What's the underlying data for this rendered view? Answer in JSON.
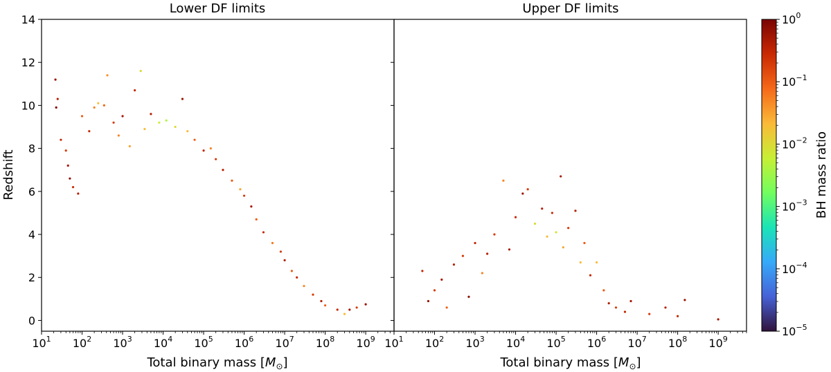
{
  "chart_data": [
    {
      "type": "scatter",
      "title": "Lower DF limits",
      "xlabel": "Total binary mass [M⊙]",
      "ylabel": "Redshift",
      "xscale": "log",
      "xlim": [
        10,
        5000000000
      ],
      "ylim": [
        -0.5,
        14
      ],
      "x_ticks": [
        10,
        100,
        1000,
        10000,
        100000,
        1000000,
        10000000,
        100000000,
        1000000000
      ],
      "x_tick_labels": [
        [
          "10",
          "1"
        ],
        [
          "10",
          "2"
        ],
        [
          "10",
          "3"
        ],
        [
          "10",
          "4"
        ],
        [
          "10",
          "5"
        ],
        [
          "10",
          "6"
        ],
        [
          "10",
          "7"
        ],
        [
          "10",
          "8"
        ],
        [
          "10",
          "9"
        ]
      ],
      "y_ticks": [
        0,
        2,
        4,
        6,
        8,
        10,
        12,
        14
      ],
      "y_tick_labels": [
        "0",
        "2",
        "4",
        "6",
        "8",
        "10",
        "12",
        "14"
      ],
      "color_variable": "BH mass ratio",
      "series": [
        {
          "points": [
            [
              22,
              11.2,
              0.6
            ],
            [
              25,
              10.3,
              0.4
            ],
            [
              23,
              9.9,
              0.9
            ],
            [
              30,
              8.4,
              0.3
            ],
            [
              40,
              7.9,
              0.2
            ],
            [
              45,
              7.2,
              0.5
            ],
            [
              50,
              6.6,
              0.7
            ],
            [
              60,
              6.2,
              0.25
            ],
            [
              80,
              5.9,
              0.4
            ],
            [
              100,
              9.5,
              0.1
            ],
            [
              150,
              8.8,
              0.3
            ],
            [
              200,
              9.9,
              0.05
            ],
            [
              250,
              10.1,
              0.02
            ],
            [
              350,
              10.0,
              0.08
            ],
            [
              420,
              11.4,
              0.04
            ],
            [
              600,
              9.2,
              0.2
            ],
            [
              800,
              8.6,
              0.05
            ],
            [
              1000,
              9.5,
              0.5
            ],
            [
              1500,
              8.1,
              0.03
            ],
            [
              2000,
              10.7,
              0.3
            ],
            [
              2800,
              11.6,
              0.01
            ],
            [
              3500,
              8.9,
              0.02
            ],
            [
              5000,
              9.6,
              0.4
            ],
            [
              8000,
              9.2,
              0.006
            ],
            [
              12000,
              9.3,
              0.004
            ],
            [
              20000,
              9.0,
              0.01
            ],
            [
              30000,
              10.3,
              0.6
            ],
            [
              40000,
              8.8,
              0.02
            ],
            [
              60000,
              8.4,
              0.1
            ],
            [
              100000,
              7.9,
              0.3
            ],
            [
              150000,
              8.0,
              0.05
            ],
            [
              200000,
              7.5,
              0.2
            ],
            [
              300000,
              7.0,
              0.4
            ],
            [
              500000,
              6.5,
              0.1
            ],
            [
              800000,
              6.1,
              0.03
            ],
            [
              1000000,
              5.8,
              0.2
            ],
            [
              1500000,
              5.3,
              0.5
            ],
            [
              2000000,
              4.7,
              0.1
            ],
            [
              3000000,
              4.1,
              0.3
            ],
            [
              5000000,
              3.6,
              0.06
            ],
            [
              8000000,
              3.2,
              0.2
            ],
            [
              10000000,
              2.8,
              0.4
            ],
            [
              15000000,
              2.3,
              0.1
            ],
            [
              20000000,
              2.0,
              0.3
            ],
            [
              30000000,
              1.6,
              0.05
            ],
            [
              50000000,
              1.2,
              0.2
            ],
            [
              80000000,
              0.9,
              0.4
            ],
            [
              100000000,
              0.7,
              0.1
            ],
            [
              200000000,
              0.5,
              0.3
            ],
            [
              300000000,
              0.3,
              0.02
            ],
            [
              400000000,
              0.5,
              0.5
            ],
            [
              600000000,
              0.6,
              0.2
            ],
            [
              1000000000,
              0.75,
              0.6
            ]
          ]
        }
      ]
    },
    {
      "type": "scatter",
      "title": "Upper DF limits",
      "xlabel": "Total binary mass [M⊙]",
      "ylabel": "",
      "xscale": "log",
      "xlim": [
        10,
        5000000000
      ],
      "ylim": [
        -0.5,
        14
      ],
      "x_ticks": [
        10,
        100,
        1000,
        10000,
        100000,
        1000000,
        10000000,
        100000000,
        1000000000
      ],
      "x_tick_labels": [
        [
          "10",
          "1"
        ],
        [
          "10",
          "2"
        ],
        [
          "10",
          "3"
        ],
        [
          "10",
          "4"
        ],
        [
          "10",
          "5"
        ],
        [
          "10",
          "6"
        ],
        [
          "10",
          "7"
        ],
        [
          "10",
          "8"
        ],
        [
          "10",
          "9"
        ]
      ],
      "color_variable": "BH mass ratio",
      "series": [
        {
          "points": [
            [
              50,
              2.3,
              0.3
            ],
            [
              70,
              0.9,
              0.6
            ],
            [
              100,
              1.4,
              0.2
            ],
            [
              150,
              1.9,
              0.5
            ],
            [
              200,
              0.6,
              0.1
            ],
            [
              300,
              2.6,
              0.4
            ],
            [
              500,
              3.0,
              0.2
            ],
            [
              700,
              1.1,
              0.7
            ],
            [
              1000,
              3.6,
              0.3
            ],
            [
              1500,
              2.2,
              0.05
            ],
            [
              2000,
              3.1,
              0.4
            ],
            [
              3000,
              4.0,
              0.2
            ],
            [
              5000,
              6.5,
              0.05
            ],
            [
              7000,
              3.3,
              0.5
            ],
            [
              10000,
              4.8,
              0.3
            ],
            [
              15000,
              5.9,
              0.6
            ],
            [
              20000,
              6.1,
              0.2
            ],
            [
              30000,
              4.5,
              0.01
            ],
            [
              45000,
              5.2,
              0.4
            ],
            [
              60000,
              3.9,
              0.02
            ],
            [
              80000,
              5.0,
              0.3
            ],
            [
              100000,
              4.1,
              0.008
            ],
            [
              130000,
              6.7,
              0.5
            ],
            [
              150000,
              3.4,
              0.03
            ],
            [
              200000,
              4.3,
              0.2
            ],
            [
              300000,
              5.1,
              0.4
            ],
            [
              400000,
              2.7,
              0.02
            ],
            [
              500000,
              3.6,
              0.1
            ],
            [
              700000,
              2.1,
              0.3
            ],
            [
              1000000,
              2.7,
              0.02
            ],
            [
              1500000,
              1.4,
              0.1
            ],
            [
              2000000,
              0.8,
              0.4
            ],
            [
              3000000,
              0.6,
              0.2
            ],
            [
              5000000,
              0.4,
              0.3
            ],
            [
              7000000,
              0.9,
              0.5
            ],
            [
              20000000,
              0.3,
              0.2
            ],
            [
              50000000,
              0.6,
              0.4
            ],
            [
              100000000,
              0.2,
              0.3
            ],
            [
              150000000,
              0.95,
              0.6
            ],
            [
              1000000000,
              0.05,
              0.5
            ]
          ]
        }
      ]
    }
  ],
  "colorbar": {
    "label": "BH mass ratio",
    "scale": "log",
    "range": [
      1e-05,
      1
    ],
    "ticks": [
      {
        "base": "10",
        "exp": "0",
        "value": 1
      },
      {
        "base": "10",
        "exp": "−1",
        "value": 0.1
      },
      {
        "base": "10",
        "exp": "−2",
        "value": 0.01
      },
      {
        "base": "10",
        "exp": "−3",
        "value": 0.001
      },
      {
        "base": "10",
        "exp": "−4",
        "value": 0.0001
      },
      {
        "base": "10",
        "exp": "−5",
        "value": 1e-05
      }
    ],
    "colormap_stops": [
      "#30123b",
      "#4662d7",
      "#36aaf9",
      "#1ae4b6",
      "#72fe5e",
      "#c7ef34",
      "#fbb938",
      "#f56918",
      "#c92903",
      "#7a0403"
    ]
  }
}
